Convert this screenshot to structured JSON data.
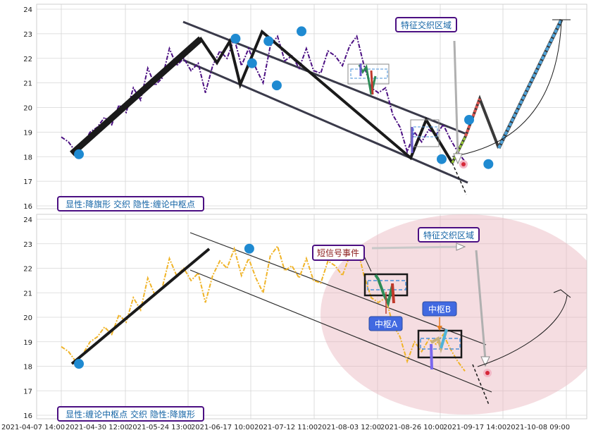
{
  "chart_data": [
    {
      "type": "line",
      "panel": "top",
      "ylim": [
        16,
        24
      ],
      "yticks": [
        "16",
        "17",
        "18",
        "19",
        "20",
        "21",
        "22",
        "23",
        "24"
      ],
      "grid": true,
      "series_color": "#4b0f82",
      "series_style": "dash-dot",
      "price_series": [
        18.8,
        18.6,
        18.2,
        18.5,
        19.0,
        19.2,
        19.6,
        19.3,
        20.1,
        19.8,
        20.8,
        20.3,
        21.6,
        20.9,
        21.2,
        22.4,
        21.7,
        22.0,
        21.5,
        21.8,
        20.6,
        21.7,
        22.3,
        22.0,
        22.8,
        21.7,
        22.4,
        21.6,
        21.0,
        22.5,
        22.9,
        21.9,
        22.1,
        21.6,
        22.4,
        21.5,
        21.4,
        22.3,
        22.1,
        21.7,
        22.5,
        22.9,
        21.7,
        20.8,
        20.6,
        20.8,
        19.7,
        19.2,
        18.2,
        19.0,
        18.6,
        19.1,
        18.9,
        19.3,
        18.7,
        18.2,
        17.8
      ],
      "pivot_points": [
        {
          "date": "2021-04-14",
          "value": 18.1
        },
        {
          "date": "2021-06-10",
          "value": 22.8
        },
        {
          "date": "2021-06-16",
          "value": 21.8
        },
        {
          "date": "2021-06-22",
          "value": 22.7
        },
        {
          "date": "2021-06-25",
          "value": 20.9
        },
        {
          "date": "2021-07-04",
          "value": 23.1
        },
        {
          "date": "2021-08-24",
          "value": 17.9
        },
        {
          "date": "2021-09-03",
          "value": 19.5
        },
        {
          "date": "2021-09-10",
          "value": 17.7
        }
      ],
      "channel_upper": [
        [
          0.265,
          22.7
        ],
        [
          0.78,
          19.0
        ]
      ],
      "channel_lower": [
        [
          0.265,
          21.9
        ],
        [
          0.78,
          16.9
        ]
      ],
      "annotations": [
        {
          "text": "特征交织区域",
          "color": "#1565a6"
        },
        {
          "text": "显性:降旗形 交织 隐性:缠论中枢点",
          "color": "#1565a6"
        }
      ]
    },
    {
      "type": "line",
      "panel": "bottom",
      "ylim": [
        16,
        24
      ],
      "yticks": [
        "16",
        "17",
        "18",
        "19",
        "20",
        "21",
        "22",
        "23",
        "24"
      ],
      "grid": true,
      "series_color": "#f0b429",
      "series_style": "dash-dot",
      "xtick_labels": [
        "2021-04-07 14:00",
        "2021-04-30 12:00",
        "2021-05-24 13:00",
        "2021-06-17 10:00",
        "2021-07-12 11:00",
        "2021-08-03 12:00",
        "2021-08-26 10:00",
        "2021-09-17 14:00",
        "2021-10-08 09:00"
      ],
      "price_series": [
        18.8,
        18.6,
        18.2,
        18.5,
        19.0,
        19.2,
        19.6,
        19.3,
        20.1,
        19.8,
        20.8,
        20.3,
        21.6,
        20.9,
        21.2,
        22.4,
        21.7,
        22.0,
        21.5,
        21.8,
        20.6,
        21.7,
        22.3,
        22.0,
        22.8,
        21.7,
        22.4,
        21.6,
        21.0,
        22.5,
        22.9,
        21.9,
        22.1,
        21.6,
        22.4,
        21.5,
        21.4,
        22.3,
        22.1,
        21.7,
        22.5,
        22.9,
        21.7,
        20.8,
        20.6,
        20.8,
        19.7,
        19.2,
        18.2,
        19.0,
        18.6,
        19.1,
        18.9,
        19.3,
        18.7,
        18.2,
        17.8
      ],
      "pivot_points": [
        {
          "date": "2021-04-14",
          "value": 18.1
        },
        {
          "date": "2021-06-15",
          "value": 22.8
        }
      ],
      "annotations": [
        {
          "text": "特征交织区域",
          "color": "#1565a6"
        },
        {
          "text": "短信号事件",
          "color": "#8b1a1a"
        },
        {
          "text": "中枢A",
          "color": "#ffffff"
        },
        {
          "text": "中枢B",
          "color": "#ffffff"
        },
        {
          "text": "显性:缠论中枢点 交织 隐性:降旗形",
          "color": "#1565a6"
        }
      ]
    }
  ],
  "labels": {
    "top_feature": "特征交织区域",
    "top_legend": "显性:降旗形 交织 隐性:缠论中枢点",
    "bottom_feature": "特征交织区域",
    "bottom_signal": "短信号事件",
    "zone_a": "中枢A",
    "zone_b": "中枢B",
    "bottom_legend": "显性:缠论中枢点 交织 隐性:降旗形"
  }
}
